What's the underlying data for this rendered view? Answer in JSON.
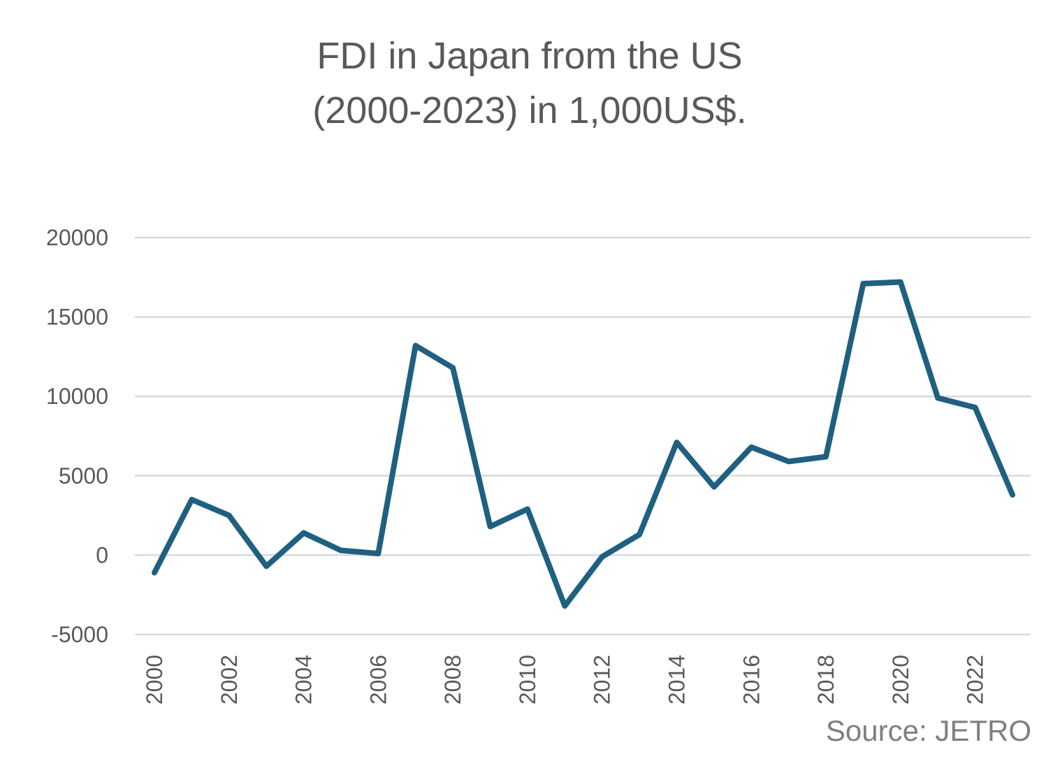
{
  "chart_data": {
    "type": "line",
    "title": "FDI in Japan from the US",
    "subtitle": "(2000-2023) in 1,000US$.",
    "xlabel": "",
    "ylabel": "",
    "x": [
      2000,
      2001,
      2002,
      2003,
      2004,
      2005,
      2006,
      2007,
      2008,
      2009,
      2010,
      2011,
      2012,
      2013,
      2014,
      2015,
      2016,
      2017,
      2018,
      2019,
      2020,
      2021,
      2022,
      2023
    ],
    "x_tick_labels": [
      "2000",
      "2002",
      "2004",
      "2006",
      "2008",
      "2010",
      "2012",
      "2014",
      "2016",
      "2018",
      "2020",
      "2022"
    ],
    "series": [
      {
        "values": [
          -1100,
          3500,
          2500,
          -700,
          1400,
          300,
          100,
          13200,
          11800,
          1800,
          2900,
          -3200,
          -100,
          1300,
          7100,
          4300,
          6800,
          5900,
          6200,
          17100,
          17200,
          9900,
          9300,
          3800
        ],
        "color": "#1f6080"
      }
    ],
    "ylim": [
      -5000,
      20000
    ],
    "y_ticks": [
      -5000,
      0,
      5000,
      10000,
      15000,
      20000
    ],
    "y_tick_labels": [
      "-5000",
      "0",
      "5000",
      "10000",
      "15000",
      "20000"
    ],
    "grid": true,
    "legend": "none",
    "source": "Source: JETRO"
  }
}
